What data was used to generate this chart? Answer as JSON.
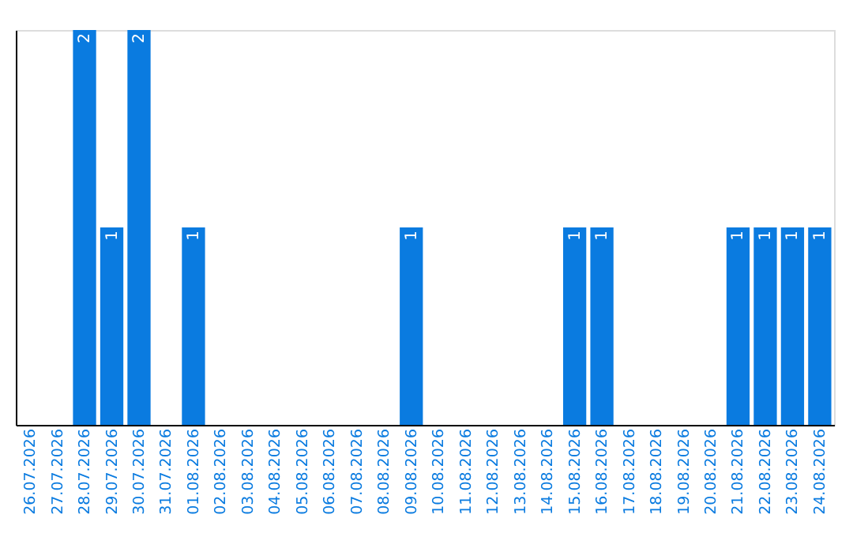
{
  "chart_data": {
    "type": "bar",
    "categories": [
      "26.07.2026",
      "27.07.2026",
      "28.07.2026",
      "29.07.2026",
      "30.07.2026",
      "31.07.2026",
      "01.08.2026",
      "02.08.2026",
      "03.08.2026",
      "04.08.2026",
      "05.08.2026",
      "06.08.2026",
      "07.08.2026",
      "08.08.2026",
      "09.08.2026",
      "10.08.2026",
      "11.08.2026",
      "12.08.2026",
      "13.08.2026",
      "14.08.2026",
      "15.08.2026",
      "16.08.2026",
      "17.08.2026",
      "18.08.2026",
      "19.08.2026",
      "20.08.2026",
      "21.08.2026",
      "22.08.2026",
      "23.08.2026",
      "24.08.2026"
    ],
    "values": [
      0,
      0,
      2,
      1,
      2,
      0,
      1,
      0,
      0,
      0,
      0,
      0,
      0,
      0,
      1,
      0,
      0,
      0,
      0,
      0,
      1,
      1,
      0,
      0,
      0,
      0,
      1,
      1,
      1,
      1
    ],
    "value_labels": [
      null,
      null,
      "2",
      "1",
      "2",
      null,
      "1",
      null,
      null,
      null,
      null,
      null,
      null,
      null,
      "1",
      null,
      null,
      null,
      null,
      null,
      "1",
      "1",
      null,
      null,
      null,
      null,
      "1",
      "1",
      "1",
      "1"
    ],
    "color": "#0a7be0",
    "ylim": [
      0,
      2
    ],
    "tick_labels": "x",
    "grid": false
  }
}
